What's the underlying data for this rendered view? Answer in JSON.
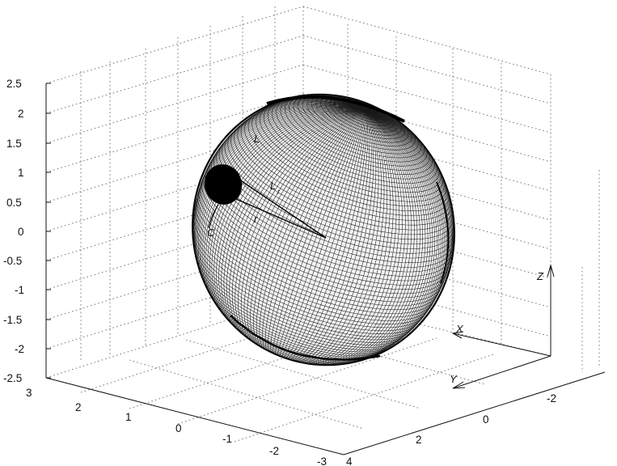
{
  "z_axis": {
    "ticks": [
      "2.5",
      "2",
      "1.5",
      "1",
      "0.5",
      "0",
      "-0.5",
      "-1",
      "-1.5",
      "-2",
      "-2.5"
    ]
  },
  "x_axis": {
    "ticks": [
      "3",
      "2",
      "1",
      "0",
      "-1",
      "-2",
      "-3"
    ]
  },
  "y_axis": {
    "ticks": [
      "4",
      "2",
      "0",
      "-2"
    ]
  },
  "labels": {
    "L": "L",
    "Lr": "L",
    "Lr_sub": "r",
    "r": "r",
    "C": "C",
    "X": "X",
    "Y": "Y",
    "Z": "Z"
  },
  "colors": {
    "mesh": "#1a1a1a",
    "grid": "#6a6a6a",
    "cap": "#000000"
  }
}
